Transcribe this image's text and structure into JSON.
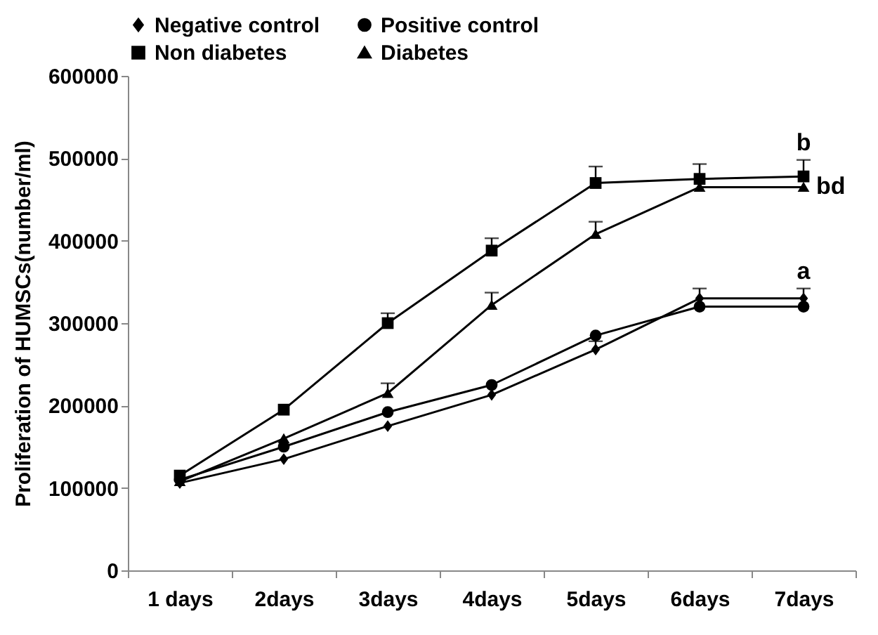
{
  "chart_data": {
    "type": "line",
    "ylabel": "Proliferation of HUMSCs(number/ml)",
    "categories": [
      "1 days",
      "2days",
      "3days",
      "4days",
      "5days",
      "6days",
      "7days"
    ],
    "series": [
      {
        "name": "Negative control",
        "color": "#000000",
        "marker": "diamond",
        "values": [
          106000,
          135000,
          175000,
          213000,
          268000,
          330000,
          330000
        ],
        "errors": [
          null,
          null,
          null,
          null,
          10000,
          12000,
          12000
        ]
      },
      {
        "name": "Positive control",
        "color": "#000000",
        "marker": "circle",
        "values": [
          110000,
          150000,
          192000,
          225000,
          285000,
          320000,
          320000
        ]
      },
      {
        "name": "Non diabetes",
        "color": "#000000",
        "marker": "square",
        "values": [
          115000,
          195000,
          300000,
          388000,
          470000,
          475000,
          478000
        ],
        "errors": [
          null,
          null,
          12000,
          15000,
          20000,
          18000,
          20000
        ]
      },
      {
        "name": "Diabetes",
        "color": "#000000",
        "marker": "triangle",
        "values": [
          108000,
          160000,
          215000,
          322000,
          408000,
          465000,
          465000
        ],
        "errors": [
          null,
          null,
          12000,
          15000,
          15000,
          null,
          null
        ]
      }
    ],
    "ylim": [
      0,
      600000
    ],
    "yticks": [
      0,
      100000,
      200000,
      300000,
      400000,
      500000,
      600000
    ],
    "legend": "top left",
    "grid": false,
    "annotations": [
      {
        "text": "b",
        "x": "7days",
        "y": 478000
      },
      {
        "text": "bd",
        "x": "7days",
        "y": 465000
      },
      {
        "text": "a",
        "x": "7days",
        "y": 330000
      }
    ]
  }
}
